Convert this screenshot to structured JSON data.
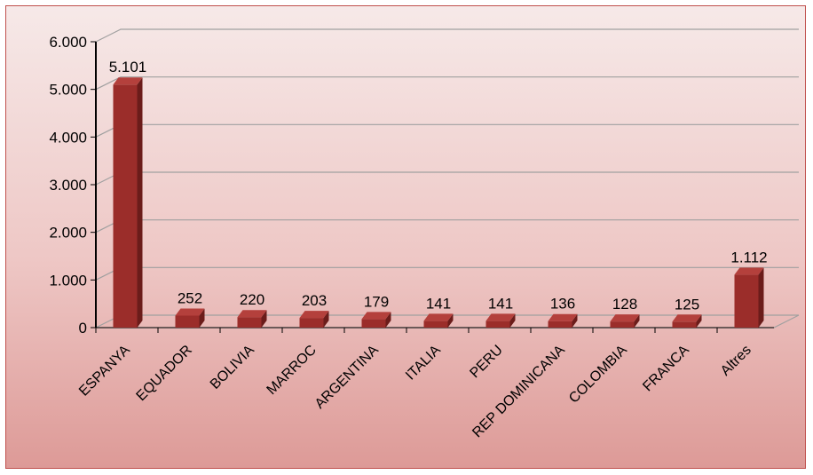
{
  "chart_data": {
    "type": "bar",
    "style": "3d-column",
    "categories": [
      "ESPANYA",
      "EQUADOR",
      "BOLIVIA",
      "MARROC",
      "ARGENTINA",
      "ITALIA",
      "PERU",
      "REP DOMINICANA",
      "COLOMBIA",
      "FRANCA",
      "Altres"
    ],
    "values": [
      5101,
      252,
      220,
      203,
      179,
      141,
      141,
      136,
      128,
      125,
      1112
    ],
    "value_labels": [
      "5.101",
      "252",
      "220",
      "203",
      "179",
      "141",
      "141",
      "136",
      "128",
      "125",
      "1.112"
    ],
    "yticks": [
      "0",
      "1.000",
      "2.000",
      "3.000",
      "4.000",
      "5.000",
      "6.000"
    ],
    "ylim": [
      0,
      6000
    ],
    "grid": true,
    "legend": "none",
    "colors": {
      "bar_front": "#9b2d2a",
      "bar_side": "#6b1c1a",
      "bar_top": "#b4403c",
      "gridline": "#a0a0a0",
      "frame_border": "#c0504d"
    }
  }
}
